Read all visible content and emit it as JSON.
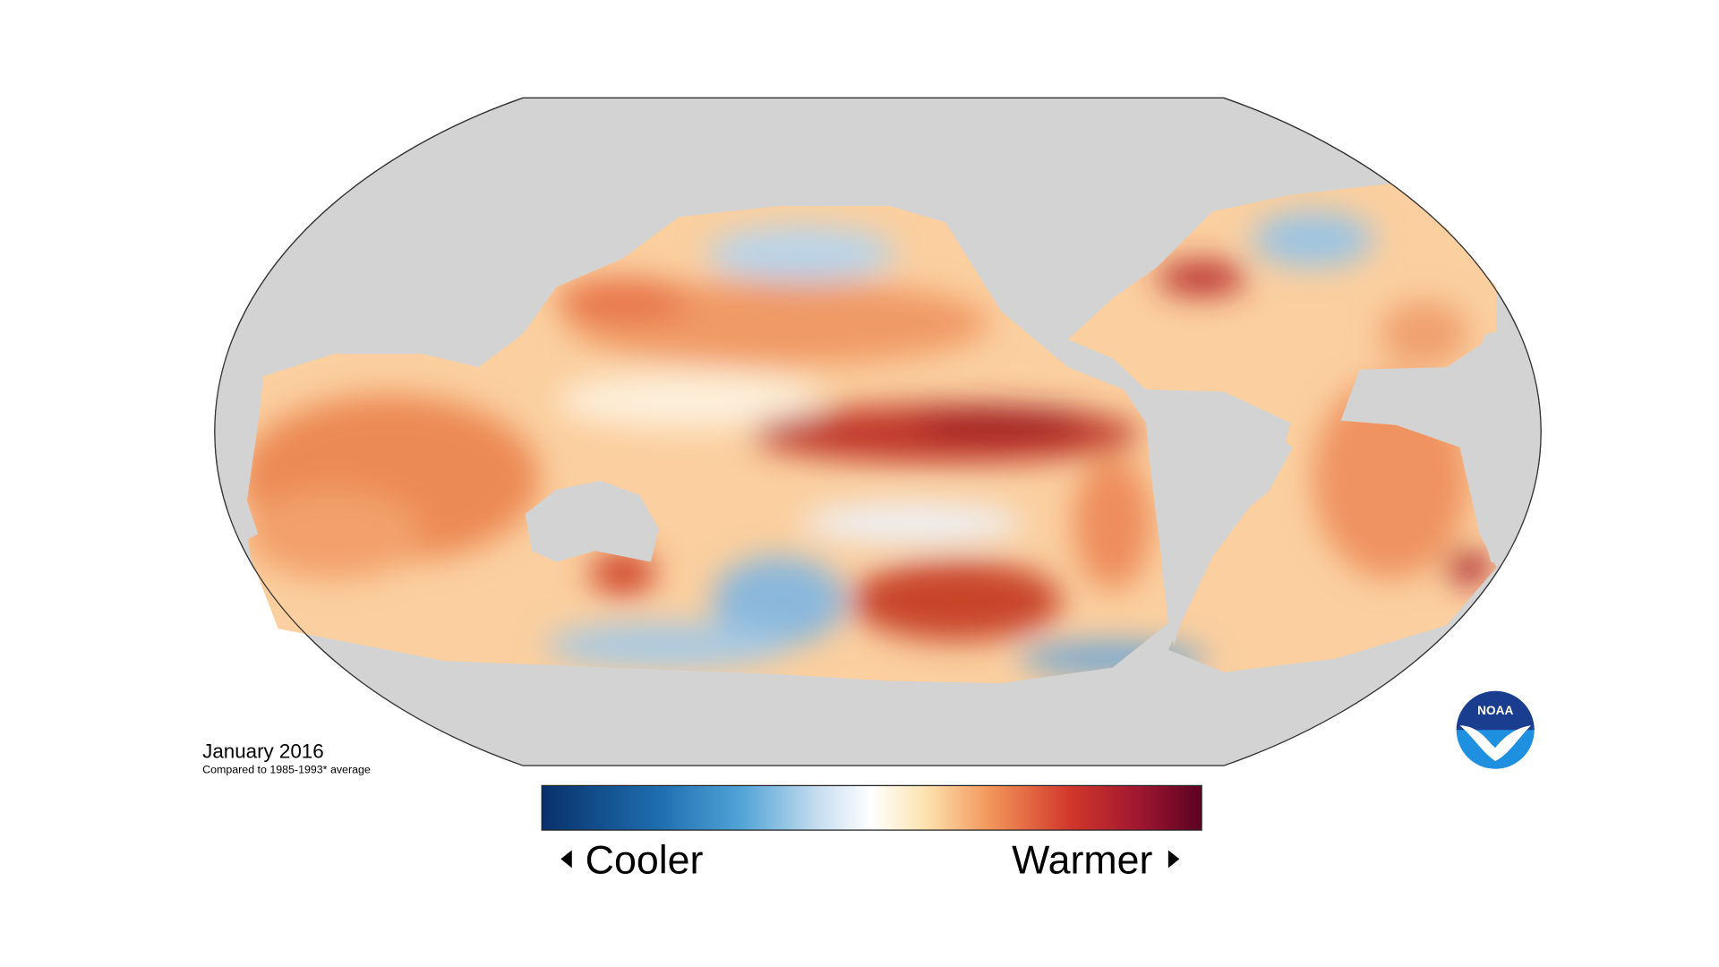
{
  "title": "January 2016",
  "subtitle": "Compared to 1985-1993* average",
  "legend": {
    "low_label": "Cooler",
    "high_label": "Warmer"
  },
  "logo": {
    "text": "NOAA"
  }
}
